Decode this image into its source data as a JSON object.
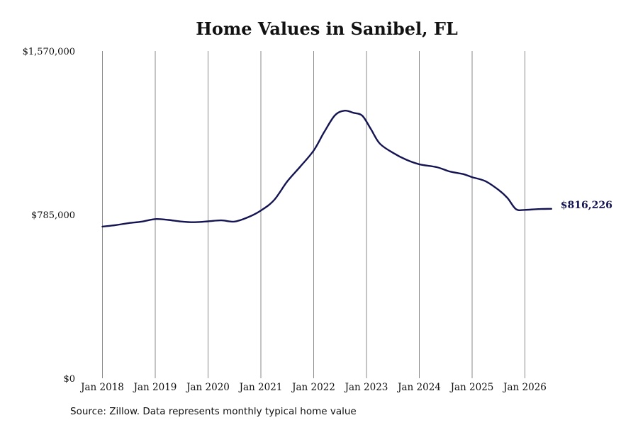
{
  "chart_data": {
    "type": "line",
    "title": "Home Values in Sanibel, FL",
    "xlabel": "",
    "ylabel": "",
    "ylim": [
      0,
      1570000
    ],
    "y_ticks": [
      {
        "value": 0,
        "label": "$0"
      },
      {
        "value": 785000,
        "label": "$785,000"
      },
      {
        "value": 1570000,
        "label": "$1,570,000"
      }
    ],
    "x_ticks": [
      {
        "value": 2018.0,
        "label": "Jan 2018"
      },
      {
        "value": 2019.0,
        "label": "Jan 2019"
      },
      {
        "value": 2020.0,
        "label": "Jan 2020"
      },
      {
        "value": 2021.0,
        "label": "Jan 2021"
      },
      {
        "value": 2022.0,
        "label": "Jan 2022"
      },
      {
        "value": 2023.0,
        "label": "Jan 2023"
      },
      {
        "value": 2024.0,
        "label": "Jan 2024"
      },
      {
        "value": 2025.0,
        "label": "Jan 2025"
      },
      {
        "value": 2026.0,
        "label": "Jan 2026"
      }
    ],
    "grid": "vertical",
    "series": [
      {
        "color": "#141452",
        "points": [
          {
            "x": 2018.0,
            "y": 731000
          },
          {
            "x": 2018.25,
            "y": 738000
          },
          {
            "x": 2018.5,
            "y": 748000
          },
          {
            "x": 2018.75,
            "y": 755000
          },
          {
            "x": 2019.0,
            "y": 767000
          },
          {
            "x": 2019.25,
            "y": 763000
          },
          {
            "x": 2019.5,
            "y": 755000
          },
          {
            "x": 2019.75,
            "y": 752000
          },
          {
            "x": 2020.0,
            "y": 756000
          },
          {
            "x": 2020.25,
            "y": 761000
          },
          {
            "x": 2020.5,
            "y": 755000
          },
          {
            "x": 2020.75,
            "y": 775000
          },
          {
            "x": 2021.0,
            "y": 808000
          },
          {
            "x": 2021.25,
            "y": 858000
          },
          {
            "x": 2021.5,
            "y": 948000
          },
          {
            "x": 2021.75,
            "y": 1020000
          },
          {
            "x": 2022.0,
            "y": 1096000
          },
          {
            "x": 2022.2,
            "y": 1185000
          },
          {
            "x": 2022.4,
            "y": 1264000
          },
          {
            "x": 2022.58,
            "y": 1287000
          },
          {
            "x": 2022.75,
            "y": 1277000
          },
          {
            "x": 2022.92,
            "y": 1263000
          },
          {
            "x": 2023.08,
            "y": 1200000
          },
          {
            "x": 2023.25,
            "y": 1130000
          },
          {
            "x": 2023.5,
            "y": 1085000
          },
          {
            "x": 2023.75,
            "y": 1052000
          },
          {
            "x": 2024.0,
            "y": 1030000
          },
          {
            "x": 2024.33,
            "y": 1016000
          },
          {
            "x": 2024.58,
            "y": 995000
          },
          {
            "x": 2024.83,
            "y": 983000
          },
          {
            "x": 2025.0,
            "y": 968000
          },
          {
            "x": 2025.25,
            "y": 949000
          },
          {
            "x": 2025.5,
            "y": 907000
          },
          {
            "x": 2025.67,
            "y": 868000
          },
          {
            "x": 2025.83,
            "y": 815000
          },
          {
            "x": 2026.0,
            "y": 811000
          },
          {
            "x": 2026.25,
            "y": 815000
          },
          {
            "x": 2026.5,
            "y": 816226
          }
        ]
      }
    ],
    "end_label": "$816,226"
  },
  "footer": {
    "source": "Source: Zillow. Data represents monthly typical home value"
  }
}
